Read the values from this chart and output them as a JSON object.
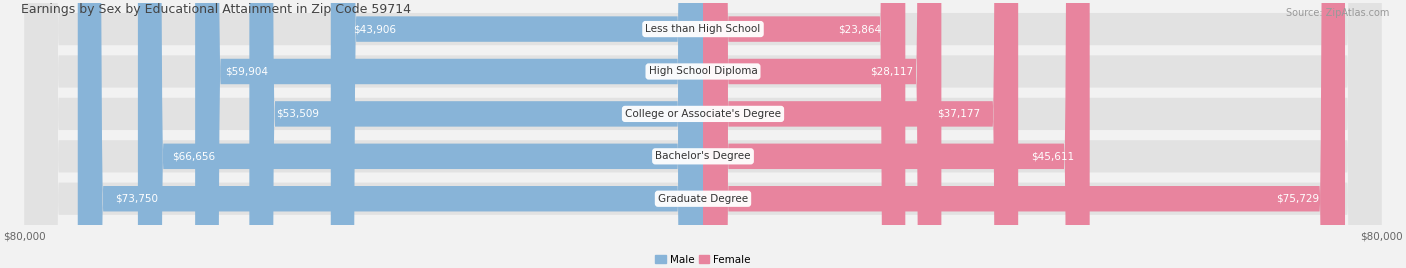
{
  "title": "Earnings by Sex by Educational Attainment in Zip Code 59714",
  "source": "Source: ZipAtlas.com",
  "categories": [
    "Less than High School",
    "High School Diploma",
    "College or Associate's Degree",
    "Bachelor's Degree",
    "Graduate Degree"
  ],
  "male_values": [
    43906,
    59904,
    53509,
    66656,
    73750
  ],
  "female_values": [
    23864,
    28117,
    37177,
    45611,
    75729
  ],
  "max_value": 80000,
  "male_color": "#88b4d8",
  "female_color": "#e8849e",
  "male_label": "Male",
  "female_label": "Female",
  "bg_color": "#f2f2f2",
  "bar_bg_color": "#e2e2e2",
  "title_fontsize": 9.0,
  "label_fontsize": 7.5,
  "value_fontsize": 7.5,
  "tick_fontsize": 7.5,
  "source_fontsize": 7.0
}
